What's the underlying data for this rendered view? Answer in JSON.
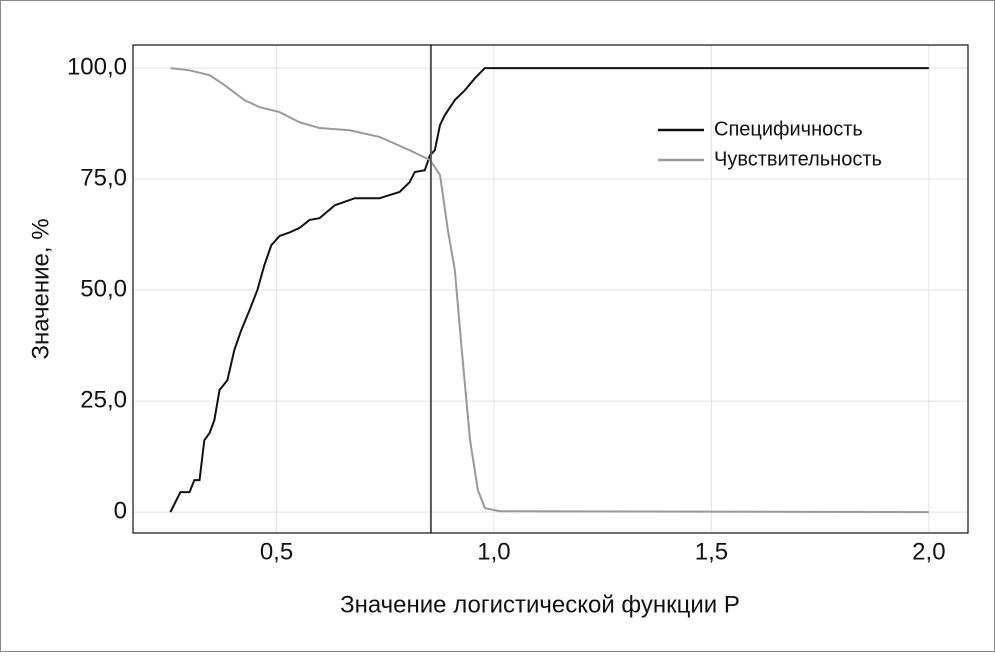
{
  "chart_data": {
    "type": "line",
    "xlabel": "Значение логистической функции Р",
    "ylabel": "Значение, %",
    "xlim": [
      0.17,
      2.09
    ],
    "ylim": [
      -4.7,
      105.2
    ],
    "xticks": [
      {
        "value": 0.5,
        "label": "0,5"
      },
      {
        "value": 1.0,
        "label": "1,0"
      },
      {
        "value": 1.5,
        "label": "1,5"
      },
      {
        "value": 2.0,
        "label": "2,0"
      }
    ],
    "yticks": [
      {
        "value": 0,
        "label": "0"
      },
      {
        "value": 25,
        "label": "25,0"
      },
      {
        "value": 50,
        "label": "50,0"
      },
      {
        "value": 75,
        "label": "75,0"
      },
      {
        "value": 100,
        "label": "100,0"
      }
    ],
    "grid": true,
    "legend": "upper right",
    "vline": 0.855,
    "vline_color": "#555555",
    "series": [
      {
        "name": "Специфичность",
        "color": "#111111",
        "x": [
          0.256,
          0.279,
          0.3,
          0.311,
          0.323,
          0.334,
          0.346,
          0.357,
          0.369,
          0.387,
          0.403,
          0.419,
          0.438,
          0.456,
          0.472,
          0.488,
          0.507,
          0.53,
          0.553,
          0.576,
          0.599,
          0.634,
          0.68,
          0.737,
          0.783,
          0.806,
          0.818,
          0.841,
          0.853,
          0.864,
          0.876,
          0.887,
          0.91,
          0.933,
          0.956,
          0.979,
          2.0
        ],
        "values": [
          0,
          4.5,
          4.5,
          7.2,
          7.2,
          16.2,
          17.8,
          20.7,
          27.5,
          29.7,
          36.5,
          41,
          45.5,
          50,
          55.6,
          60.1,
          62.2,
          63,
          64,
          65.8,
          66.2,
          69.1,
          70.7,
          70.7,
          72.1,
          74.3,
          76.6,
          77,
          80.4,
          81.5,
          87.2,
          89.4,
          92.8,
          95,
          97.7,
          100,
          100
        ]
      },
      {
        "name": "Чувствительность",
        "color": "#999999",
        "x": [
          0.256,
          0.3,
          0.346,
          0.38,
          0.426,
          0.461,
          0.507,
          0.553,
          0.599,
          0.668,
          0.737,
          0.806,
          0.853,
          0.876,
          0.894,
          0.91,
          0.926,
          0.945,
          0.963,
          0.979,
          1.014,
          2.0
        ],
        "values": [
          100,
          99.5,
          98.4,
          96.2,
          92.8,
          91.2,
          90.1,
          87.8,
          86.5,
          86,
          84.5,
          81.5,
          79.3,
          75.9,
          63.5,
          54.5,
          36.5,
          16.2,
          5,
          0.9,
          0.2,
          0
        ]
      }
    ]
  }
}
